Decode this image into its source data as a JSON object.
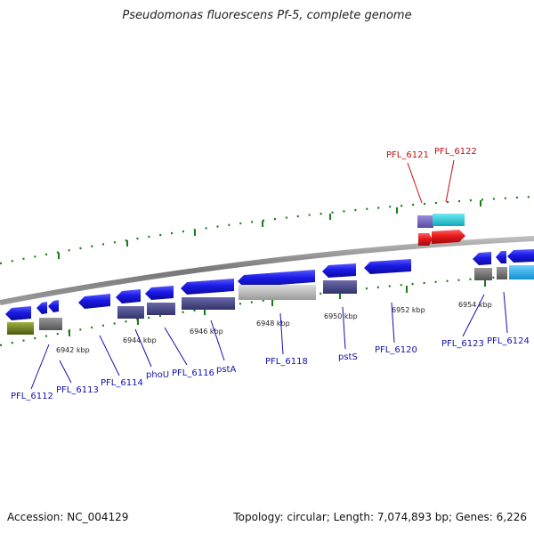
{
  "header": {
    "title": "Pseudomonas fluorescens Pf-5, complete genome"
  },
  "footer": {
    "accession": "Accession: NC_004129",
    "summary": "Topology: circular; Length: 7,074,893 bp; Genes: 6,226"
  },
  "scale": {
    "unit": "kbp",
    "ticks": [
      "6942 kbp",
      "6944 kbp",
      "6946 kbp",
      "6948 kbp",
      "6950 kbp",
      "6952 kbp",
      "6954 kbp"
    ]
  },
  "colors": {
    "gene_blue": "#1a1ae6",
    "gene_red": "#e61a1a",
    "label_blue": "#1010b0",
    "label_red": "#c01010",
    "track_tick": "#1a7a1a",
    "axis_gray": "#888888"
  },
  "genes": [
    {
      "label": "PFL_6112",
      "strand": "minus",
      "label_color": "blue"
    },
    {
      "label": "PFL_6113",
      "strand": "minus",
      "label_color": "blue"
    },
    {
      "label": "PFL_6114",
      "strand": "minus",
      "label_color": "blue"
    },
    {
      "label": "phoU",
      "strand": "minus",
      "label_color": "blue"
    },
    {
      "label": "PFL_6116",
      "strand": "minus",
      "label_color": "blue"
    },
    {
      "label": "pstA",
      "strand": "minus",
      "label_color": "blue"
    },
    {
      "label": "PFL_6118",
      "strand": "minus",
      "label_color": "blue"
    },
    {
      "label": "pstS",
      "strand": "minus",
      "label_color": "blue"
    },
    {
      "label": "PFL_6120",
      "strand": "minus",
      "label_color": "blue"
    },
    {
      "label": "PFL_6121",
      "strand": "plus",
      "label_color": "red"
    },
    {
      "label": "PFL_6122",
      "strand": "plus",
      "label_color": "red"
    },
    {
      "label": "PFL_6123",
      "strand": "minus",
      "label_color": "blue"
    },
    {
      "label": "PFL_6124",
      "strand": "minus",
      "label_color": "blue"
    }
  ]
}
